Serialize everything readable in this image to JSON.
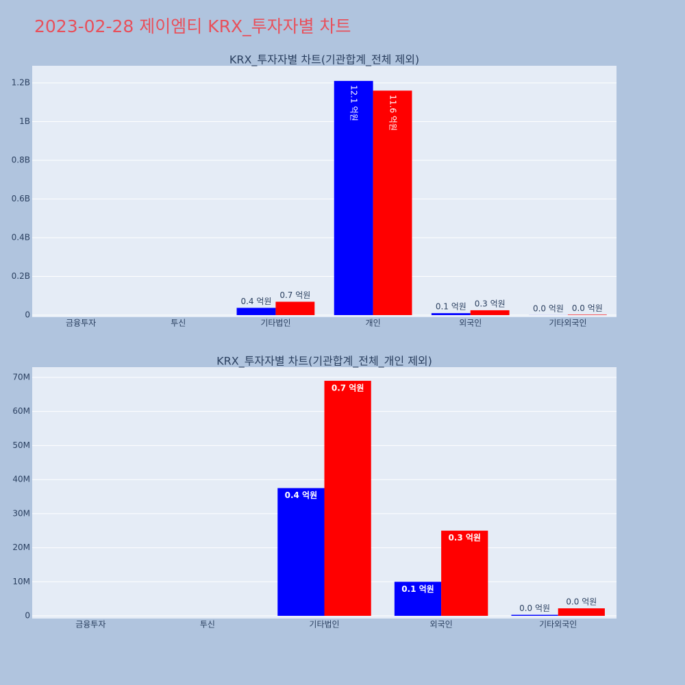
{
  "title": "2023-02-28 제이엠티 KRX_투자자별 차트",
  "chart_data": [
    {
      "type": "bar",
      "title": "KRX_투자자별 차트(기관합계_전체 제외)",
      "categories": [
        "금융투자",
        "투신",
        "기타법인",
        "개인",
        "외국인",
        "기타외국인"
      ],
      "series": [
        {
          "color": "#0000ff",
          "values": [
            0,
            0,
            37500000,
            1210000000,
            10000000,
            300000
          ],
          "value_labels": [
            null,
            null,
            "0.4 억원",
            "12.1 억원",
            "0.1 억원",
            "0.0 억원"
          ]
        },
        {
          "color": "#ff0000",
          "values": [
            0,
            0,
            69000000,
            1160000000,
            25000000,
            2200000
          ],
          "value_labels": [
            null,
            null,
            "0.7 억원",
            "11.6 억원",
            "0.3 억원",
            "0.0 억원"
          ]
        }
      ],
      "ylim": [
        -10600000,
        1288500000
      ],
      "yticks": [
        0,
        {
          "value": 200000000,
          "label": "0.2B"
        },
        {
          "value": 400000000,
          "label": "0.4B"
        },
        {
          "value": 600000000,
          "label": "0.6B"
        },
        {
          "value": 800000000,
          "label": "0.8B"
        },
        {
          "value": 1000000000,
          "label": "1B"
        },
        {
          "value": 1200000000,
          "label": "1.2B"
        }
      ],
      "grid": true
    },
    {
      "type": "bar",
      "title": "KRX_투자자별 차트(기관합계_전체_개인 제외)",
      "categories": [
        "금융투자",
        "투신",
        "기타법인",
        "외국인",
        "기타외국인"
      ],
      "series": [
        {
          "color": "#0000ff",
          "values": [
            0,
            0,
            37500000,
            10000000,
            300000
          ],
          "value_labels": [
            null,
            null,
            "0.4 억원",
            "0.1 억원",
            "0.0 억원"
          ]
        },
        {
          "color": "#ff0000",
          "values": [
            0,
            0,
            69000000,
            25000000,
            2200000
          ],
          "value_labels": [
            null,
            null,
            "0.7 억원",
            "0.3 억원",
            "0.0 억원"
          ]
        }
      ],
      "ylim": [
        -800000,
        73000000
      ],
      "yticks": [
        0,
        {
          "value": 10000000,
          "label": "10M"
        },
        {
          "value": 20000000,
          "label": "20M"
        },
        {
          "value": 30000000,
          "label": "30M"
        },
        {
          "value": 40000000,
          "label": "40M"
        },
        {
          "value": 50000000,
          "label": "50M"
        },
        {
          "value": 60000000,
          "label": "60M"
        },
        {
          "value": 70000000,
          "label": "70M"
        }
      ],
      "grid": true
    }
  ]
}
